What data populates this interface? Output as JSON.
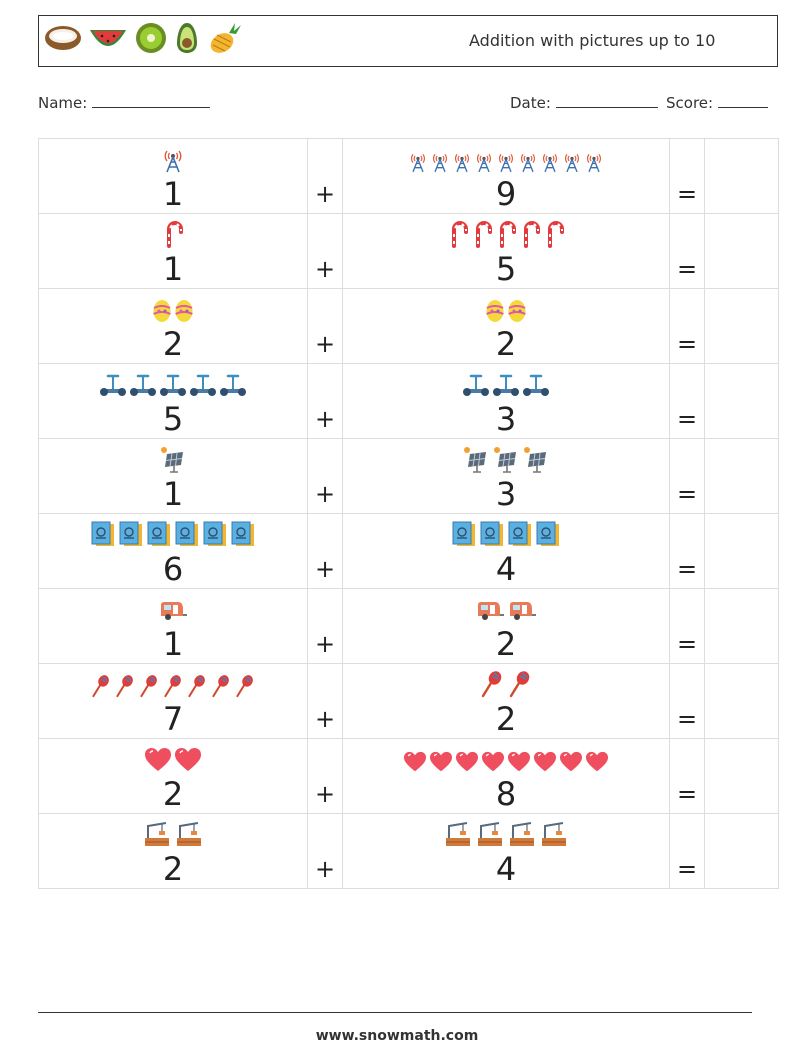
{
  "header": {
    "title": "Addition with pictures up to 10",
    "decor_icons": [
      "coconut-icon",
      "watermelon-icon",
      "kiwi-icon",
      "avocado-icon",
      "pineapple-icon"
    ]
  },
  "fields": {
    "name_label": "Name:",
    "date_label": "Date:",
    "score_label": "Score:"
  },
  "operators": {
    "plus": "+",
    "equals": "="
  },
  "problems": [
    {
      "a": 1,
      "b": 9,
      "icon": "radio-tower-icon"
    },
    {
      "a": 1,
      "b": 5,
      "icon": "candy-cane-icon"
    },
    {
      "a": 2,
      "b": 2,
      "icon": "easter-egg-icon"
    },
    {
      "a": 5,
      "b": 3,
      "icon": "hoverboard-icon"
    },
    {
      "a": 1,
      "b": 3,
      "icon": "solar-panel-icon"
    },
    {
      "a": 6,
      "b": 4,
      "icon": "book-icon"
    },
    {
      "a": 1,
      "b": 2,
      "icon": "caravan-icon"
    },
    {
      "a": 7,
      "b": 2,
      "icon": "maraca-icon"
    },
    {
      "a": 2,
      "b": 8,
      "icon": "heart-icon"
    },
    {
      "a": 2,
      "b": 4,
      "icon": "factory-crane-icon"
    }
  ],
  "footer": {
    "url": "www.snowmath.com"
  }
}
